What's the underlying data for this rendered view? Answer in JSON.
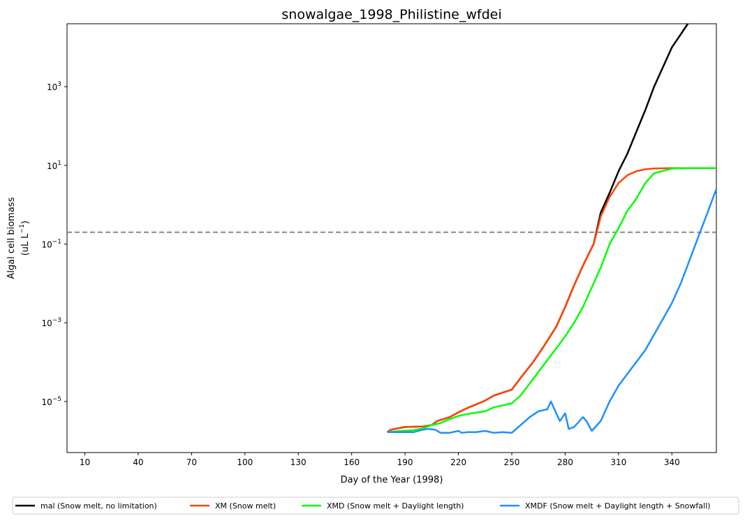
{
  "chart_data": {
    "type": "line",
    "title": "snowalgae_1998_Philistine_wfdei",
    "xlabel": "Day of the Year (1998)",
    "ylabel_line1": "Algal cell biomass",
    "ylabel_line2": "(uL L",
    "ylabel_sup": "−1",
    "ylabel_close": ")",
    "xlim": [
      0,
      365
    ],
    "ylim_log10": [
      -6.3,
      4.6
    ],
    "yscale": "log",
    "grid": false,
    "legend_placement": "bottom",
    "x_ticks": [
      10,
      40,
      70,
      100,
      130,
      160,
      190,
      220,
      250,
      280,
      310,
      340
    ],
    "y_ticks": [
      {
        "exp": -5,
        "base": "10",
        "sup": "−5"
      },
      {
        "exp": -3,
        "base": "10",
        "sup": "−3"
      },
      {
        "exp": -1,
        "base": "10",
        "sup": "−1"
      },
      {
        "exp": 1,
        "base": "10",
        "sup": "1"
      },
      {
        "exp": 3,
        "base": "10",
        "sup": "3"
      }
    ],
    "threshold_log10": -0.7,
    "threshold_color": "#808080",
    "series": [
      {
        "name": "mal (Snow melt, no limitation)",
        "color": "#000000",
        "x": [
          180,
          182,
          190,
          200,
          205,
          208,
          215,
          220,
          225,
          235,
          240,
          250,
          255,
          262,
          268,
          275,
          280,
          285,
          290,
          296,
          300,
          305,
          310,
          315,
          320,
          325,
          330,
          340,
          349
        ],
        "log10y": [
          -5.78,
          -5.72,
          -5.65,
          -5.64,
          -5.6,
          -5.5,
          -5.4,
          -5.28,
          -5.17,
          -4.98,
          -4.85,
          -4.7,
          -4.4,
          -4.0,
          -3.6,
          -3.1,
          -2.6,
          -2.05,
          -1.55,
          -1.0,
          -0.2,
          0.3,
          0.85,
          1.3,
          1.85,
          2.4,
          3.0,
          4.0,
          4.6
        ]
      },
      {
        "name": "XM (Snow melt)",
        "color": "#ff4500",
        "x": [
          180,
          182,
          190,
          200,
          205,
          208,
          215,
          220,
          225,
          235,
          240,
          250,
          255,
          262,
          268,
          275,
          280,
          285,
          290,
          296,
          300,
          305,
          310,
          315,
          320,
          325,
          330,
          340,
          350,
          365
        ],
        "log10y": [
          -5.78,
          -5.72,
          -5.65,
          -5.64,
          -5.6,
          -5.5,
          -5.4,
          -5.28,
          -5.17,
          -4.98,
          -4.85,
          -4.7,
          -4.4,
          -4.0,
          -3.6,
          -3.1,
          -2.6,
          -2.05,
          -1.55,
          -1.0,
          -0.3,
          0.2,
          0.55,
          0.75,
          0.85,
          0.9,
          0.92,
          0.93,
          0.93,
          0.93
        ]
      },
      {
        "name": "XMD (Snow melt + Daylight length)",
        "color": "#00ff00",
        "x": [
          180,
          185,
          195,
          200,
          205,
          210,
          215,
          220,
          225,
          235,
          240,
          250,
          255,
          260,
          265,
          270,
          275,
          280,
          285,
          290,
          295,
          300,
          305,
          310,
          315,
          320,
          325,
          330,
          340,
          350,
          365
        ],
        "log10y": [
          -5.78,
          -5.76,
          -5.73,
          -5.69,
          -5.6,
          -5.55,
          -5.45,
          -5.37,
          -5.32,
          -5.25,
          -5.15,
          -5.05,
          -4.85,
          -4.55,
          -4.25,
          -3.95,
          -3.65,
          -3.35,
          -3.0,
          -2.6,
          -2.1,
          -1.6,
          -1.0,
          -0.6,
          -0.15,
          0.15,
          0.55,
          0.8,
          0.92,
          0.93,
          0.93
        ]
      },
      {
        "name": "XMDF (Snow melt + Daylight length + Snowfall)",
        "color": "#1e90ff",
        "x": [
          180,
          185,
          195,
          200,
          203,
          207,
          210,
          215,
          220,
          222,
          225,
          230,
          235,
          240,
          245,
          250,
          255,
          260,
          265,
          270,
          272,
          275,
          277,
          280,
          282,
          285,
          290,
          292,
          295,
          300,
          305,
          310,
          315,
          320,
          325,
          330,
          335,
          340,
          345,
          350,
          355,
          360,
          365
        ],
        "log10y": [
          -5.78,
          -5.78,
          -5.78,
          -5.72,
          -5.7,
          -5.72,
          -5.8,
          -5.8,
          -5.75,
          -5.8,
          -5.78,
          -5.78,
          -5.75,
          -5.8,
          -5.78,
          -5.8,
          -5.6,
          -5.4,
          -5.25,
          -5.2,
          -5.0,
          -5.3,
          -5.5,
          -5.3,
          -5.7,
          -5.65,
          -5.4,
          -5.5,
          -5.75,
          -5.5,
          -5.0,
          -4.6,
          -4.3,
          -4.0,
          -3.7,
          -3.3,
          -2.9,
          -2.5,
          -2.0,
          -1.4,
          -0.8,
          -0.2,
          0.4
        ]
      }
    ]
  }
}
